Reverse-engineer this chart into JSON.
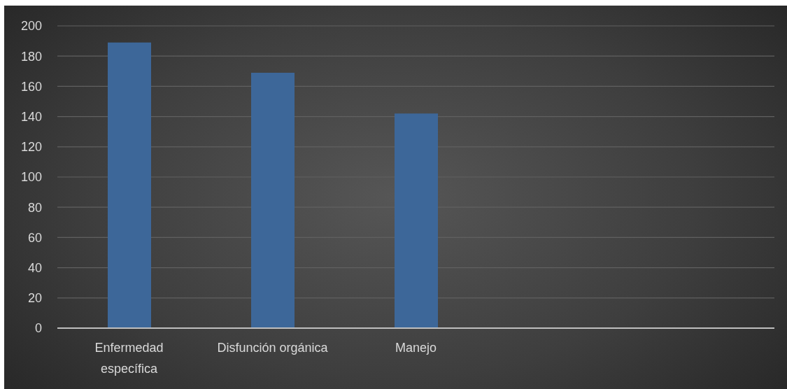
{
  "chart_data": {
    "type": "bar",
    "categories": [
      "Enfermedad específica",
      "Disfunción orgánica",
      "Manejo",
      null,
      null
    ],
    "values": [
      189,
      169,
      142,
      null,
      null
    ],
    "color": "#3d6799",
    "ylim": [
      0,
      200
    ],
    "yticks": [
      0,
      20,
      40,
      60,
      80,
      100,
      120,
      140,
      160,
      180,
      200
    ],
    "grid": "y"
  }
}
